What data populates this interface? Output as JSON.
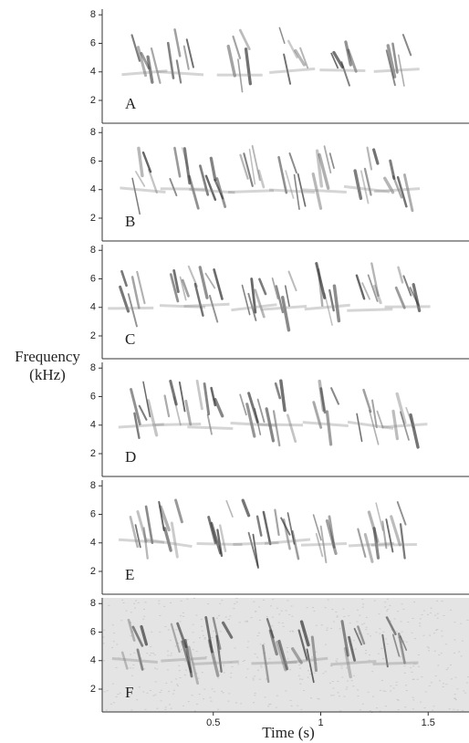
{
  "figure": {
    "y_label": [
      "Frequency",
      "(kHz)"
    ],
    "x_label": "Time (s)",
    "x_ticks": [
      0.5,
      1,
      1.5
    ],
    "xlim": [
      0,
      1.69
    ],
    "ylim": [
      0.4,
      8.4
    ],
    "panels": [
      {
        "label": "A",
        "y_ticks": [
          2,
          4,
          6,
          8
        ]
      },
      {
        "label": "B",
        "y_ticks": [
          2,
          4,
          6,
          8
        ]
      },
      {
        "label": "C",
        "y_ticks": [
          2,
          4,
          6,
          8
        ]
      },
      {
        "label": "D",
        "y_ticks": [
          2,
          4,
          6,
          8
        ]
      },
      {
        "label": "E",
        "y_ticks": [
          2,
          4,
          6,
          8
        ]
      },
      {
        "label": "F",
        "y_ticks": [
          2,
          4,
          6,
          8
        ]
      }
    ]
  }
}
